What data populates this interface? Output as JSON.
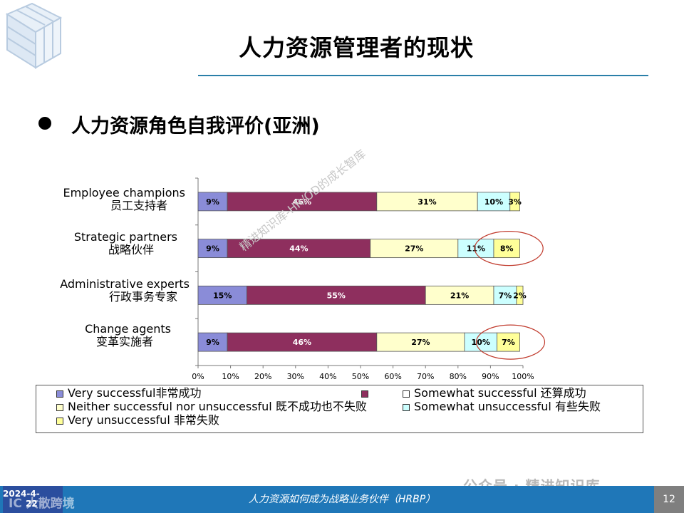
{
  "slide": {
    "title": "人力资源管理者的现状",
    "bullet": "人力资源角色自我评价(亚洲)"
  },
  "chart_data": {
    "type": "stacked-bar-horizontal",
    "categories": [
      {
        "en": "Employee champions",
        "cn": "员工支持者"
      },
      {
        "en": "Strategic partners",
        "cn": "战略伙伴"
      },
      {
        "en": "Administrative experts",
        "cn": "行政事务专家"
      },
      {
        "en": "Change agents",
        "cn": "变革实施者"
      }
    ],
    "series": [
      {
        "name": "Very successful非常成功",
        "color": "#8a8cd8",
        "values": [
          9,
          9,
          15,
          9
        ],
        "labels": [
          "9%",
          "9%",
          "15%",
          "9%"
        ]
      },
      {
        "name": "Somewhat successful 还算成功",
        "color": "#8e2f5e",
        "values": [
          46,
          44,
          55,
          46
        ],
        "labels": [
          "46%",
          "44%",
          "55%",
          "46%"
        ]
      },
      {
        "name": "Neither successful nor unsuccessful 既不成功也不失败",
        "color": "#ffffcc",
        "values": [
          31,
          27,
          21,
          27
        ],
        "labels": [
          "31%",
          "27%",
          "21%",
          "27%"
        ]
      },
      {
        "name": "Somewhat unsuccessful 有些失败",
        "color": "#ccffff",
        "values": [
          10,
          11,
          7,
          10
        ],
        "labels": [
          "10%",
          "11%",
          "7%",
          "10%"
        ]
      },
      {
        "name": "Very unsuccessful 非常失败",
        "color": "#ffff99",
        "values": [
          3,
          8,
          2,
          7
        ],
        "labels": [
          "3%",
          "8%",
          "2%",
          "7%"
        ]
      }
    ],
    "x_ticks": [
      "0%",
      "10%",
      "20%",
      "30%",
      "40%",
      "50%",
      "60%",
      "70%",
      "80%",
      "90%",
      "100%"
    ],
    "xlim": [
      0,
      100
    ],
    "highlighted": [
      {
        "category": "Strategic partners",
        "series": "Very unsuccessful 非常失败"
      },
      {
        "category": "Change agents",
        "series": "Very unsuccessful 非常失败"
      }
    ]
  },
  "legend": {
    "items": [
      {
        "label": "Very successful非常成功",
        "color": "#8a8cd8"
      },
      {
        "label": "Somewhat successful 还算成功",
        "color": "#8e2f5e"
      },
      {
        "label": "Neither successful nor unsuccessful 既不成功也不失败",
        "color": "#ffffcc"
      },
      {
        "label": "Somewhat unsuccessful 有些失败",
        "color": "#ccffff"
      },
      {
        "label": "Very unsuccessful 非常失败",
        "color": "#ffff99"
      }
    ]
  },
  "watermarks": {
    "diagonal": "精进知识库-HR/OD的成长智库",
    "account": "公众号 · 精进知识库"
  },
  "footer": {
    "date_line1": "2024-4-",
    "date_line2": "22",
    "brand": "IC 大散跨境",
    "center": "人力资源如何成为战略业务伙伴（HRBP）",
    "page": "12"
  },
  "colors": {
    "accent": "#1f77b8",
    "title_rule": "#2a7fa8",
    "highlight_circle": "#c0392b"
  }
}
